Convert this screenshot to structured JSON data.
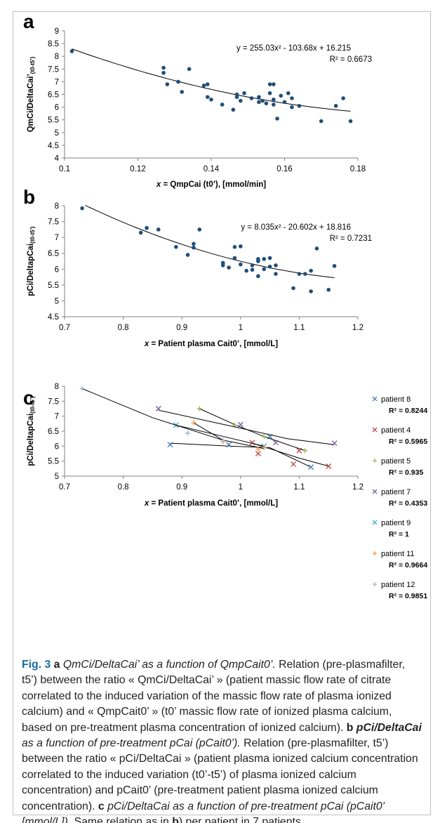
{
  "caption": {
    "fig_label": "Fig. 3",
    "a_letter": "a",
    "a_title": "QmCi/DeltaCai’ as a function of QmpCait0’.",
    "a_body": " Relation (pre-plasmafilter, t5’) between the ratio « QmCi/DeltaCai’ » (patient massic flow rate of citrate correlated to the induced variation of the massic flow rate of plasma ionized calcium) and « QmpCait0’ » (t0’ massic flow rate of ionized plasma calcium, based on pre-treatment plasma concentration of ionized calcium).",
    "b_letter": "b",
    "b_title_bold": "pCi/DeltaCai",
    "b_title": " as a function of pre-treatment pCai (pCait0’).",
    "b_body": " Relation (pre-plasmafilter, t5’) between the ratio « pCi/DeltaCai » (patient plasma ionized calcium concentration correlated to the induced variation (t0’-t5’) of plasma ionized calcium concentration) and pCait0’ (pre-treatment patient plasma ionized calcium concentration).",
    "c_letter": "c",
    "c_title": "pCi/DeltaCai as a function of pre-treatment pCai (pCait0’ [mmol/L]).",
    "c_body_1": " Same relation as in ",
    "c_ref": "b",
    "c_body_2": ") per patient in 7 patients"
  },
  "chart_data": [
    {
      "panel": "a",
      "type": "scatter",
      "xlabel_prefix": "x",
      "xlabel": " = QmpCai (t0’), [mmol/min]",
      "ylabel": "QmCi/DeltaCai’",
      "ylabel_sub": "(t0-t5’)",
      "xlim": [
        0.1,
        0.18
      ],
      "ylim": [
        4,
        9
      ],
      "xticks": [
        "0.1",
        "0.12",
        "0.14",
        "0.16",
        "0.18"
      ],
      "yticks": [
        "4",
        "4.5",
        "5",
        "5.5",
        "6",
        "6.5",
        "7",
        "7.5",
        "8",
        "8.5",
        "9"
      ],
      "equation": "y = 255.03x² - 103.68x + 16.215",
      "r2": "R² = 0.6673",
      "trend": {
        "a": 255.03,
        "b": -103.68,
        "c": 16.215,
        "x_from": 0.102,
        "x_to": 0.178
      },
      "color": "#1f4e79",
      "points": [
        [
          0.102,
          8.2
        ],
        [
          0.127,
          7.55
        ],
        [
          0.127,
          7.35
        ],
        [
          0.128,
          6.9
        ],
        [
          0.131,
          7.0
        ],
        [
          0.132,
          6.6
        ],
        [
          0.134,
          7.5
        ],
        [
          0.138,
          6.85
        ],
        [
          0.139,
          6.9
        ],
        [
          0.139,
          6.4
        ],
        [
          0.14,
          6.3
        ],
        [
          0.143,
          6.1
        ],
        [
          0.146,
          5.9
        ],
        [
          0.147,
          6.5
        ],
        [
          0.147,
          6.4
        ],
        [
          0.148,
          6.25
        ],
        [
          0.149,
          6.55
        ],
        [
          0.151,
          6.35
        ],
        [
          0.153,
          6.4
        ],
        [
          0.153,
          6.2
        ],
        [
          0.154,
          6.25
        ],
        [
          0.155,
          6.15
        ],
        [
          0.156,
          6.9
        ],
        [
          0.156,
          6.55
        ],
        [
          0.157,
          6.9
        ],
        [
          0.157,
          6.3
        ],
        [
          0.157,
          6.1
        ],
        [
          0.158,
          5.55
        ],
        [
          0.159,
          6.45
        ],
        [
          0.16,
          6.2
        ],
        [
          0.161,
          6.55
        ],
        [
          0.162,
          6.35
        ],
        [
          0.162,
          6.0
        ],
        [
          0.164,
          6.05
        ],
        [
          0.17,
          5.45
        ],
        [
          0.174,
          6.05
        ],
        [
          0.176,
          6.35
        ],
        [
          0.178,
          5.45
        ]
      ]
    },
    {
      "panel": "b",
      "type": "scatter",
      "xlabel_prefix": "x",
      "xlabel": " = Patient plasma Cait0’, [mmol/L]",
      "ylabel": "pCi/DeltapCai",
      "ylabel_sub": "(t0-t5’)",
      "xlim": [
        0.7,
        1.2
      ],
      "ylim": [
        4.5,
        8
      ],
      "xticks": [
        "0.7",
        "0.8",
        "0.9",
        "1",
        "1.1",
        "1.2"
      ],
      "yticks": [
        "4.5",
        "5",
        "5.5",
        "6",
        "6.5",
        "7",
        "7.5",
        "8"
      ],
      "equation": "y = 8.035x² - 20.602x + 18.816",
      "r2": "R² = 0.7231",
      "trend": {
        "a": 8.035,
        "b": -20.602,
        "c": 18.816,
        "x_from": 0.735,
        "x_to": 1.16
      },
      "color": "#1f4e79",
      "points": [
        [
          0.73,
          7.92
        ],
        [
          0.83,
          7.15
        ],
        [
          0.84,
          7.3
        ],
        [
          0.86,
          7.25
        ],
        [
          0.89,
          6.7
        ],
        [
          0.91,
          6.45
        ],
        [
          0.92,
          6.8
        ],
        [
          0.92,
          6.68
        ],
        [
          0.93,
          7.25
        ],
        [
          0.97,
          6.2
        ],
        [
          0.97,
          6.12
        ],
        [
          0.98,
          6.05
        ],
        [
          0.99,
          6.7
        ],
        [
          0.99,
          6.35
        ],
        [
          1.0,
          6.72
        ],
        [
          1.0,
          6.15
        ],
        [
          1.01,
          5.95
        ],
        [
          1.02,
          6.12
        ],
        [
          1.02,
          5.98
        ],
        [
          1.03,
          6.32
        ],
        [
          1.03,
          6.25
        ],
        [
          1.03,
          5.78
        ],
        [
          1.04,
          6.32
        ],
        [
          1.04,
          6.0
        ],
        [
          1.05,
          6.35
        ],
        [
          1.05,
          6.08
        ],
        [
          1.06,
          6.12
        ],
        [
          1.06,
          5.85
        ],
        [
          1.09,
          5.4
        ],
        [
          1.1,
          5.85
        ],
        [
          1.11,
          5.85
        ],
        [
          1.12,
          5.95
        ],
        [
          1.12,
          5.3
        ],
        [
          1.13,
          6.65
        ],
        [
          1.15,
          5.35
        ],
        [
          1.16,
          6.1
        ]
      ]
    },
    {
      "panel": "c",
      "type": "scatter",
      "xlabel_prefix": "x",
      "xlabel": " = Patient plasma Cait0’, [mmol/L]",
      "ylabel": "pCi/DeltapCai",
      "ylabel_sub": "(t0-t5’)",
      "xlim": [
        0.7,
        1.2
      ],
      "ylim": [
        5,
        8
      ],
      "xticks": [
        "0.7",
        "0.8",
        "0.9",
        "1",
        "1.1",
        "1.2"
      ],
      "yticks": [
        "5",
        "5.5",
        "6",
        "6.5",
        "7",
        "7.5",
        "8"
      ],
      "series": [
        {
          "name": "patient 8",
          "r2": "R² = 0.8244",
          "marker": "x",
          "color": "#4a7ebb",
          "points": [
            [
              0.88,
              6.05
            ],
            [
              0.98,
              6.05
            ],
            [
              1.05,
              6.32
            ],
            [
              1.12,
              5.3
            ]
          ],
          "trend": [
            [
              0.88,
              6.1
            ],
            [
              0.98,
              6.0
            ],
            [
              1.05,
              5.95
            ],
            [
              1.12,
              5.3
            ]
          ]
        },
        {
          "name": "patient 4",
          "r2": "R² = 0.5965",
          "marker": "x",
          "color": "#be4b48",
          "points": [
            [
              1.02,
              6.12
            ],
            [
              1.03,
              5.75
            ],
            [
              1.09,
              5.4
            ],
            [
              1.1,
              5.85
            ],
            [
              1.15,
              5.33
            ]
          ],
          "trend": [
            [
              1.02,
              6.1
            ],
            [
              1.06,
              5.85
            ],
            [
              1.1,
              5.6
            ],
            [
              1.15,
              5.33
            ]
          ]
        },
        {
          "name": "patient 5",
          "r2": "R² = 0.935",
          "marker": "+",
          "color": "#98b954",
          "points": [
            [
              0.93,
              7.25
            ],
            [
              0.99,
              6.7
            ],
            [
              1.04,
              6.32
            ],
            [
              1.11,
              5.85
            ]
          ],
          "trend": [
            [
              0.93,
              7.25
            ],
            [
              0.99,
              6.72
            ],
            [
              1.04,
              6.32
            ],
            [
              1.11,
              5.85
            ]
          ]
        },
        {
          "name": "patient 7",
          "r2": "R² = 0.4353",
          "marker": "x",
          "color": "#7d60a0",
          "points": [
            [
              0.86,
              7.25
            ],
            [
              1.0,
              6.72
            ],
            [
              1.06,
              6.12
            ],
            [
              1.16,
              6.1
            ]
          ],
          "trend": [
            [
              0.86,
              7.2
            ],
            [
              1.0,
              6.6
            ],
            [
              1.08,
              6.25
            ],
            [
              1.16,
              6.05
            ]
          ]
        },
        {
          "name": "patient 9",
          "r2": "R² = 1",
          "marker": "x",
          "color": "#46aac5",
          "points": [
            [
              0.89,
              6.7
            ],
            [
              1.04,
              6.0
            ]
          ],
          "trend": [
            [
              0.89,
              6.7
            ],
            [
              1.04,
              6.0
            ]
          ]
        },
        {
          "name": "patient 11",
          "r2": "R² = 0.9664",
          "marker": "+",
          "color": "#f79646",
          "points": [
            [
              0.92,
              6.78
            ],
            [
              0.97,
              6.15
            ],
            [
              1.03,
              5.9
            ],
            [
              1.04,
              5.95
            ]
          ],
          "trend": [
            [
              0.92,
              6.78
            ],
            [
              0.97,
              6.2
            ],
            [
              1.04,
              5.92
            ]
          ]
        },
        {
          "name": "patient 12",
          "r2": "R² = 0.9851",
          "marker": "+",
          "color": "#95b3d7",
          "points": [
            [
              0.73,
              7.92
            ],
            [
              0.91,
              6.43
            ],
            [
              0.97,
              6.2
            ]
          ],
          "trend": [
            [
              0.73,
              7.92
            ],
            [
              0.85,
              6.95
            ],
            [
              0.97,
              6.2
            ]
          ]
        }
      ]
    }
  ]
}
